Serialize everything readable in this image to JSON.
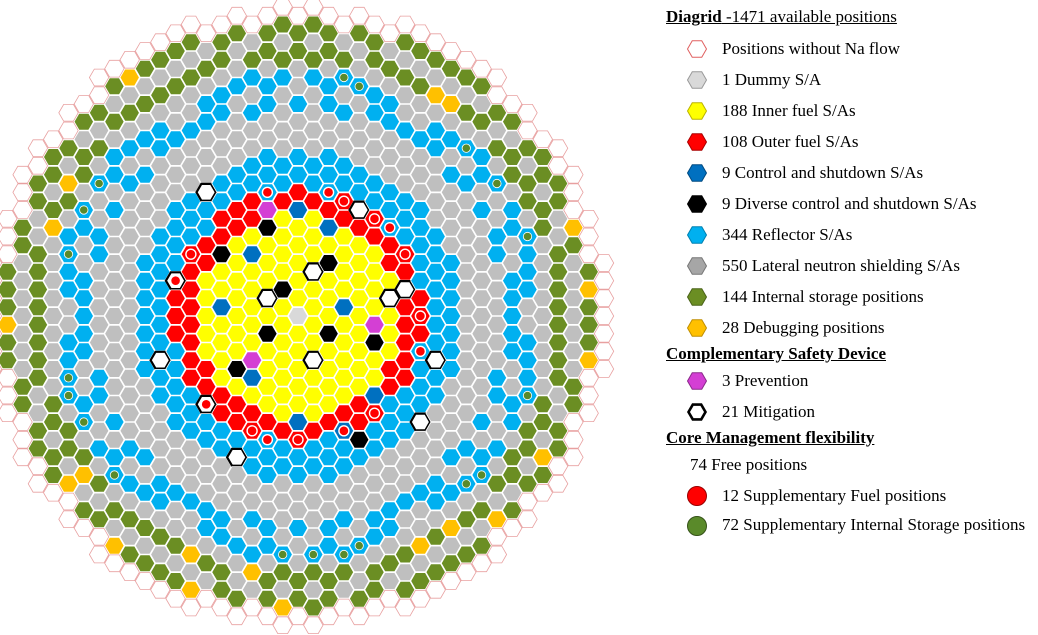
{
  "colors": {
    "na_less": "#ffffff",
    "na_less_stroke": "#e8a0a0",
    "dummy": "#d9d9d9",
    "inner_fuel": "#ffff00",
    "outer_fuel": "#ff0000",
    "control": "#0070c0",
    "diverse_control": "#000000",
    "reflector": "#00b0f0",
    "shielding": "#bfbfbf",
    "storage": "#6b8e23",
    "debugging": "#ffc000",
    "prevention": "#d43fd4",
    "mitigation": "#ffffff",
    "supp_storage": "#5a8a2a",
    "grid_stroke": "#ffffff"
  },
  "legend": {
    "diagrid": {
      "title": "Diagrid",
      "suffix": " -1471 available positions",
      "items": [
        {
          "label": "Positions without Na flow",
          "icon": "hexagon-outline-red-icon",
          "color": "#ffffff"
        },
        {
          "label": "1 Dummy S/A",
          "icon": "hexagon-lightgrey-icon",
          "color": "#d9d9d9"
        },
        {
          "label": "188 Inner fuel S/As",
          "icon": "hexagon-yellow-icon",
          "color": "#ffff00"
        },
        {
          "label": "108 Outer fuel S/As",
          "icon": "hexagon-red-icon",
          "color": "#ff0000"
        },
        {
          "label": "9 Control and shutdown S/As",
          "icon": "hexagon-darkblue-icon",
          "color": "#0070c0"
        },
        {
          "label": "9 Diverse control and shutdown  S/As",
          "icon": "hexagon-black-icon",
          "color": "#000000"
        },
        {
          "label": "344 Reflector S/As",
          "icon": "hexagon-lightblue-icon",
          "color": "#00b0f0"
        },
        {
          "label": "550 Lateral neutron shielding S/As",
          "icon": "hexagon-grey-icon",
          "color": "#bfbfbf"
        },
        {
          "label": "144 Internal storage positions",
          "icon": "hexagon-olive-icon",
          "color": "#6b8e23"
        },
        {
          "label": "28 Debugging  positions",
          "icon": "hexagon-orange-icon",
          "color": "#ffc000"
        }
      ]
    },
    "safety": {
      "title": "Complementary Safety Device",
      "items": [
        {
          "label": "3 Prevention",
          "icon": "hexagon-magenta-icon",
          "color": "#d43fd4"
        },
        {
          "label": "21 Mitigation",
          "icon": "hexagon-thick-outline-icon",
          "color": "#ffffff"
        }
      ]
    },
    "flex": {
      "title": "Core Management flexibility",
      "free": "74  Free positions",
      "items": [
        {
          "label": "12 Supplementary  Fuel positions",
          "icon": "circle-red-icon",
          "color": "#ff0000"
        },
        {
          "label": "72 Supplementary  Internal Storage positions",
          "icon": "circle-green-icon",
          "color": "#5a8a2a"
        }
      ]
    }
  }
}
